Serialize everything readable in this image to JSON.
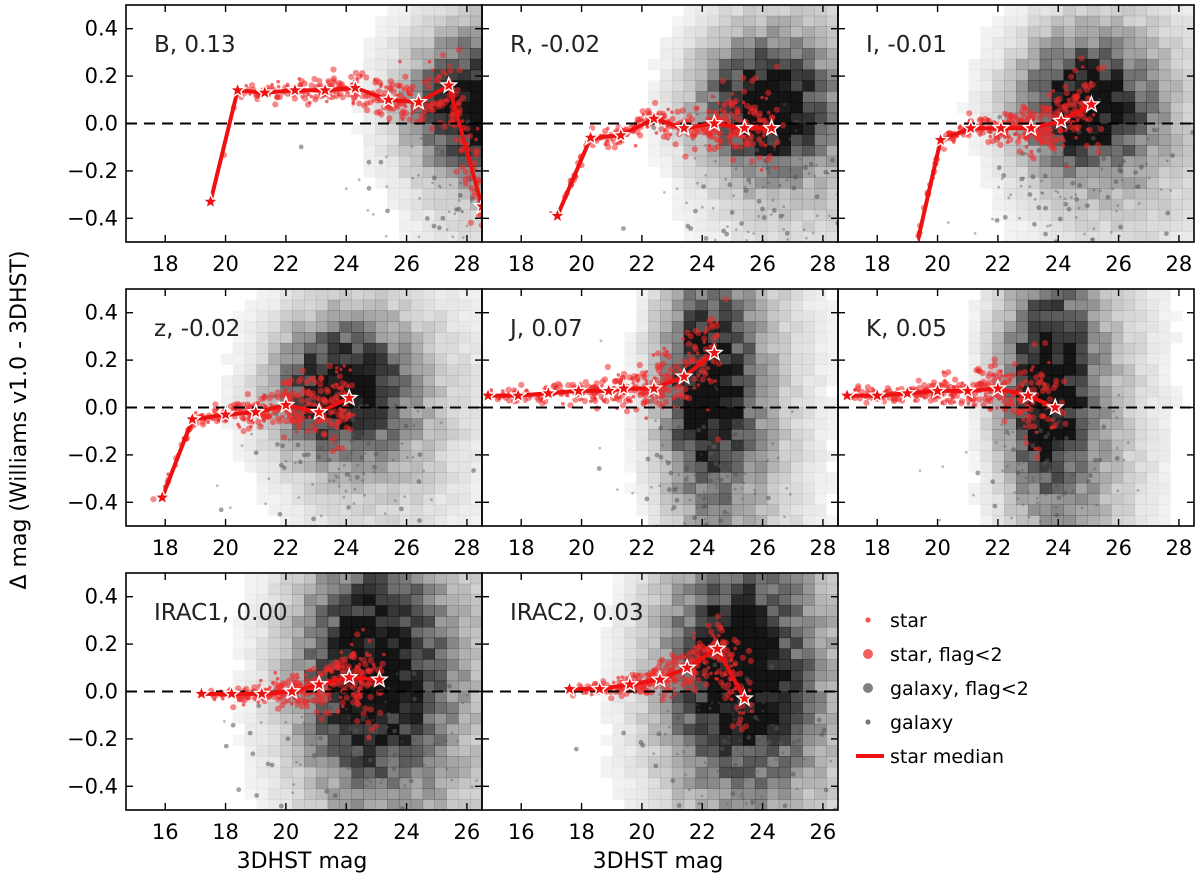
{
  "chart_data": {
    "type": "scatter",
    "ylabel": "Δ mag (Williams v1.0 - 3DHST)",
    "xlabel": "3DHST mag",
    "colors": {
      "star": "#ee2a2a",
      "median": "#ee1111",
      "galaxy": "#555555",
      "zero_line": "#000000"
    },
    "legend": {
      "position": "bottom-right",
      "entries": [
        {
          "label": "star",
          "kind": "star"
        },
        {
          "label": "star, flag<2",
          "kind": "star_flag"
        },
        {
          "label": "galaxy, flag<2",
          "kind": "galaxy_flag"
        },
        {
          "label": "galaxy",
          "kind": "galaxy"
        },
        {
          "label": "star median",
          "kind": "median"
        }
      ]
    },
    "panels": [
      {
        "band": "B",
        "offset": "0.13",
        "title": "B, 0.13",
        "xlim": [
          16.7,
          28.5
        ],
        "ylim": [
          -0.5,
          0.5
        ],
        "xticks": [
          "18",
          "20",
          "22",
          "24",
          "26",
          "28"
        ],
        "yticks": [
          "0.4",
          "0.2",
          "0.0",
          "−0.2",
          "−0.4"
        ],
        "median_x": [
          19.5,
          20.4,
          21.3,
          22.3,
          23.3,
          24.3,
          25.4,
          26.4,
          27.4,
          28.5
        ],
        "median_y": [
          -0.33,
          0.14,
          0.13,
          0.14,
          0.14,
          0.15,
          0.1,
          0.09,
          0.16,
          -0.35
        ]
      },
      {
        "band": "R",
        "offset": "-0.02",
        "title": "R, -0.02",
        "xlim": [
          16.7,
          28.5
        ],
        "ylim": [
          -0.5,
          0.5
        ],
        "xticks": [
          "18",
          "20",
          "22",
          "24",
          "26",
          "28"
        ],
        "yticks": [],
        "median_x": [
          19.2,
          20.3,
          21.3,
          22.4,
          23.4,
          24.4,
          25.4,
          26.3
        ],
        "median_y": [
          -0.39,
          -0.06,
          -0.05,
          0.02,
          -0.02,
          0.0,
          -0.02,
          -0.02
        ]
      },
      {
        "band": "I",
        "offset": "-0.01",
        "title": "I, -0.01",
        "xlim": [
          16.7,
          28.5
        ],
        "ylim": [
          -0.5,
          0.5
        ],
        "xticks": [
          "18",
          "20",
          "22",
          "24",
          "26",
          "28"
        ],
        "yticks": [],
        "median_x": [
          19.3,
          20.1,
          21.1,
          22.1,
          23.1,
          24.1,
          25.1
        ],
        "median_y": [
          -0.52,
          -0.07,
          -0.02,
          -0.02,
          -0.02,
          0.01,
          0.08
        ]
      },
      {
        "band": "z",
        "offset": "-0.02",
        "title": "z, -0.02",
        "xlim": [
          16.7,
          28.5
        ],
        "ylim": [
          -0.5,
          0.5
        ],
        "xticks": [
          "18",
          "20",
          "22",
          "24",
          "26",
          "28"
        ],
        "yticks": [
          "0.4",
          "0.2",
          "0.0",
          "−0.2",
          "−0.4"
        ],
        "median_x": [
          17.9,
          18.9,
          20.0,
          21.0,
          22.0,
          23.1,
          24.1
        ],
        "median_y": [
          -0.38,
          -0.05,
          -0.03,
          -0.02,
          0.01,
          -0.02,
          0.04
        ]
      },
      {
        "band": "J",
        "offset": "0.07",
        "title": "J, 0.07",
        "xlim": [
          16.7,
          28.5
        ],
        "ylim": [
          -0.5,
          0.5
        ],
        "xticks": [
          "18",
          "20",
          "22",
          "24",
          "26",
          "28"
        ],
        "yticks": [],
        "median_x": [
          16.9,
          17.9,
          18.9,
          19.9,
          20.9,
          21.4,
          22.4,
          23.4,
          24.4
        ],
        "median_y": [
          0.05,
          0.05,
          0.06,
          0.07,
          0.07,
          0.08,
          0.08,
          0.13,
          0.23
        ]
      },
      {
        "band": "K",
        "offset": "0.05",
        "title": "K, 0.05",
        "xlim": [
          16.7,
          28.5
        ],
        "ylim": [
          -0.5,
          0.5
        ],
        "xticks": [
          "18",
          "20",
          "22",
          "24",
          "26",
          "28"
        ],
        "yticks": [],
        "median_x": [
          17.0,
          18.0,
          19.0,
          20.0,
          21.0,
          22.0,
          23.0,
          23.9
        ],
        "median_y": [
          0.05,
          0.05,
          0.06,
          0.07,
          0.07,
          0.08,
          0.05,
          0.0
        ]
      },
      {
        "band": "IRAC1",
        "offset": "0.00",
        "title": "IRAC1, 0.00",
        "xlim": [
          14.7,
          26.5
        ],
        "ylim": [
          -0.5,
          0.5
        ],
        "xticks": [
          "16",
          "18",
          "20",
          "22",
          "24",
          "26"
        ],
        "yticks": [
          "0.4",
          "0.2",
          "0.0",
          "−0.2",
          "−0.4"
        ],
        "median_x": [
          17.2,
          18.2,
          19.2,
          20.2,
          21.1,
          22.1,
          23.1
        ],
        "median_y": [
          -0.01,
          -0.01,
          -0.01,
          0.0,
          0.03,
          0.06,
          0.05
        ]
      },
      {
        "band": "IRAC2",
        "offset": "0.03",
        "title": "IRAC2, 0.03",
        "xlim": [
          14.7,
          26.5
        ],
        "ylim": [
          -0.5,
          0.5
        ],
        "xticks": [
          "16",
          "18",
          "20",
          "22",
          "24",
          "26"
        ],
        "yticks": [],
        "median_x": [
          17.6,
          18.6,
          19.6,
          20.6,
          21.5,
          22.5,
          23.4
        ],
        "median_y": [
          0.01,
          0.01,
          0.03,
          0.05,
          0.1,
          0.18,
          -0.03
        ]
      }
    ]
  }
}
